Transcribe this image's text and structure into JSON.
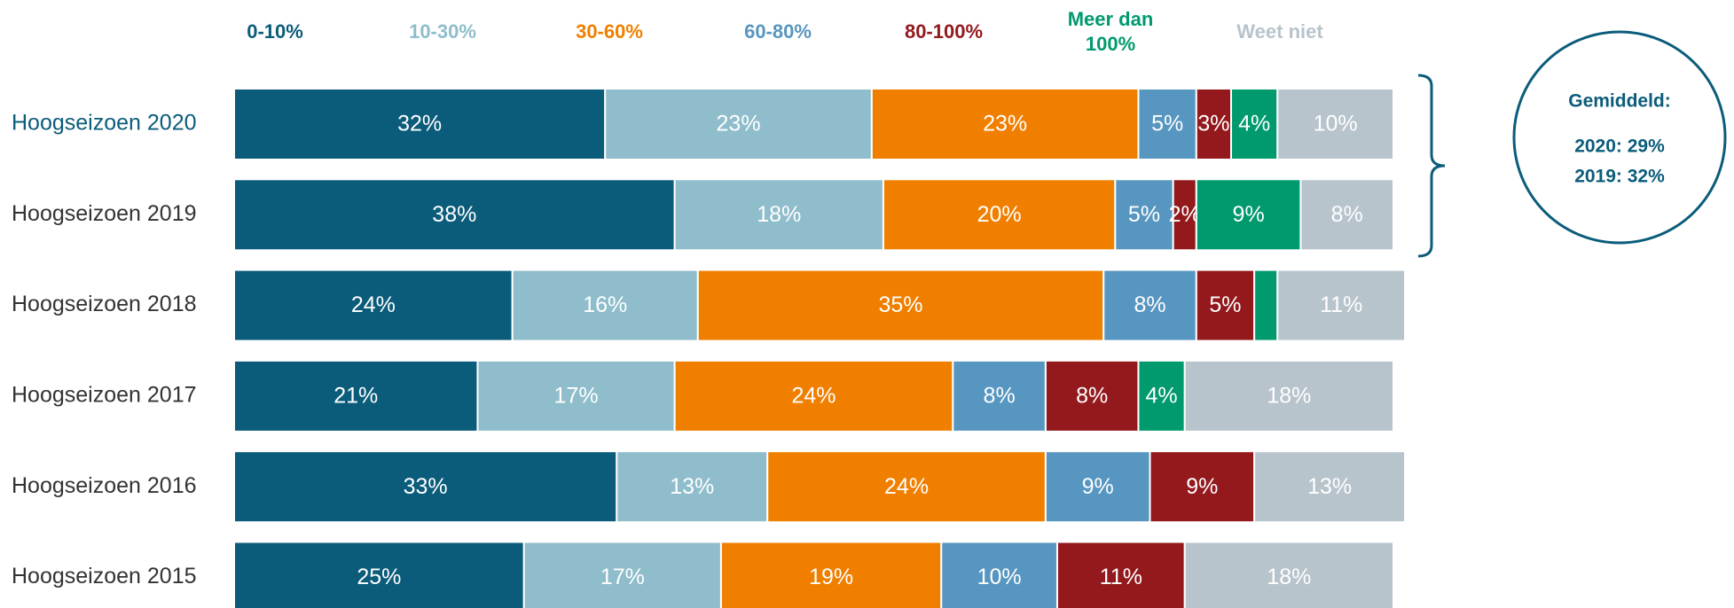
{
  "chart_data": {
    "type": "stacked-bar-horizontal",
    "categories": [
      "Hoogseizoen 2020",
      "Hoogseizoen 2019",
      "Hoogseizoen 2018",
      "Hoogseizoen 2017",
      "Hoogseizoen 2016",
      "Hoogseizoen 2015"
    ],
    "xlim": [
      0,
      100
    ],
    "legend": "top",
    "series": [
      {
        "name": "0-10%",
        "color": "#0b5c7a",
        "values": [
          32,
          38,
          24,
          21,
          33,
          25
        ],
        "value_labels": [
          "32%",
          "38%",
          "24%",
          "21%",
          "33%",
          "25%"
        ]
      },
      {
        "name": "10-30%",
        "color": "#8fbdcb",
        "values": [
          23,
          18,
          16,
          17,
          13,
          17
        ],
        "value_labels": [
          "23%",
          "18%",
          "16%",
          "17%",
          "13%",
          "17%"
        ]
      },
      {
        "name": "30-60%",
        "color": "#f07f00",
        "values": [
          23,
          20,
          35,
          24,
          24,
          19
        ],
        "value_labels": [
          "23%",
          "20%",
          "35%",
          "24%",
          "24%",
          "19%"
        ]
      },
      {
        "name": "60-80%",
        "color": "#5796c0",
        "values": [
          5,
          5,
          8,
          8,
          9,
          10
        ],
        "value_labels": [
          "5%",
          "5%",
          "8%",
          "8%",
          "9%",
          "10%"
        ]
      },
      {
        "name": "80-100%",
        "color": "#93191d",
        "values": [
          3,
          2,
          5,
          8,
          9,
          11
        ],
        "value_labels": [
          "3%",
          "2%",
          "5%",
          "8%",
          "9%",
          "11%"
        ]
      },
      {
        "name": "Meer dan 100%",
        "color": "#009a6e",
        "values": [
          4,
          9,
          2,
          4,
          0,
          0
        ],
        "value_labels": [
          "4%",
          "9%",
          null,
          "4%",
          null,
          null
        ]
      },
      {
        "name": "Weet niet",
        "color": "#b7c4cc",
        "values": [
          10,
          8,
          11,
          18,
          13,
          18
        ],
        "value_labels": [
          "10%",
          "8%",
          "11%",
          "18%",
          "13%",
          "18%"
        ]
      }
    ],
    "annotations": [
      "Gemiddeld:",
      "2020: 29%",
      "2019: 32%"
    ]
  }
}
